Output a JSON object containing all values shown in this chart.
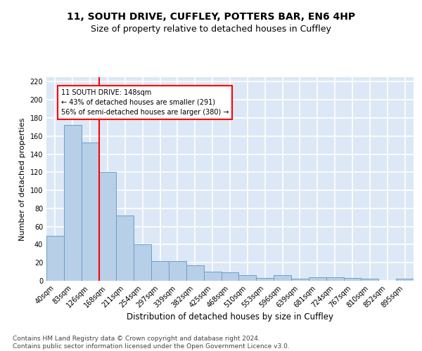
{
  "title1": "11, SOUTH DRIVE, CUFFLEY, POTTERS BAR, EN6 4HP",
  "title2": "Size of property relative to detached houses in Cuffley",
  "xlabel": "Distribution of detached houses by size in Cuffley",
  "ylabel": "Number of detached properties",
  "categories": [
    "40sqm",
    "83sqm",
    "126sqm",
    "168sqm",
    "211sqm",
    "254sqm",
    "297sqm",
    "339sqm",
    "382sqm",
    "425sqm",
    "468sqm",
    "510sqm",
    "553sqm",
    "596sqm",
    "639sqm",
    "681sqm",
    "724sqm",
    "767sqm",
    "810sqm",
    "852sqm",
    "895sqm"
  ],
  "values": [
    50,
    172,
    153,
    120,
    72,
    40,
    22,
    22,
    17,
    10,
    9,
    6,
    3,
    6,
    2,
    4,
    4,
    3,
    2,
    0,
    2
  ],
  "bar_color": "#b8cfe8",
  "bar_edge_color": "#6a9fc8",
  "red_line_x": 2.5,
  "annotation_text": "11 SOUTH DRIVE: 148sqm\n← 43% of detached houses are smaller (291)\n56% of semi-detached houses are larger (380) →",
  "annotation_box_color": "white",
  "annotation_box_edge_color": "red",
  "red_line_color": "red",
  "ylim": [
    0,
    225
  ],
  "yticks": [
    0,
    20,
    40,
    60,
    80,
    100,
    120,
    140,
    160,
    180,
    200,
    220
  ],
  "background_color": "#dce8f5",
  "grid_color": "white",
  "footer": "Contains HM Land Registry data © Crown copyright and database right 2024.\nContains public sector information licensed under the Open Government Licence v3.0.",
  "title1_fontsize": 10,
  "title2_fontsize": 9,
  "xlabel_fontsize": 8.5,
  "ylabel_fontsize": 8,
  "footer_fontsize": 6.5,
  "tick_fontsize": 7
}
